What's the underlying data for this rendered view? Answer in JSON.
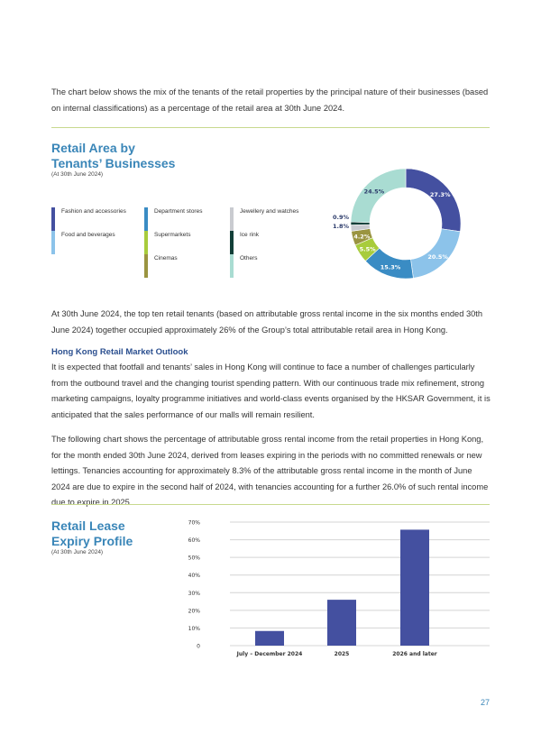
{
  "intro": "The chart below shows the mix of the tenants of the retail properties by the principal nature of their businesses (based on internal classifications) as a percentage of the retail area at 30th June 2024.",
  "donut": {
    "title_line1": "Retail Area by",
    "title_line2": "Tenants’ Businesses",
    "subtitle": "(At 30th June 2024)"
  },
  "para_top_ten": "At 30th June 2024, the top ten retail tenants (based on attributable gross rental income in the six months ended 30th June 2024) together occupied approximately 26% of the Group’s total attributable retail area in Hong Kong.",
  "outlook": {
    "heading": "Hong Kong Retail Market Outlook",
    "body": "It is expected that footfall and tenants’ sales in Hong Kong will continue to face a number of challenges particularly from the outbound travel and the changing tourist spending pattern. With our continuous trade mix refinement, strong marketing campaigns, loyalty programme initiatives and world-class events organised by the HKSAR Government, it is anticipated that the sales performance of our malls will remain resilient."
  },
  "para_expiry": "The following chart shows the percentage of attributable gross rental income from the retail properties in Hong Kong, for the month ended 30th June 2024, derived from leases expiring in the periods with no committed renewals or new lettings. Tenancies accounting for approximately 8.3% of the attributable gross rental income in the month of June 2024 are due to expire in the second half of 2024, with tenancies accounting for a further 26.0% of such rental income due to expire in 2025.",
  "bar": {
    "title_line1": "Retail Lease",
    "title_line2": "Expiry Profile",
    "subtitle": "(At 30th June 2024)"
  },
  "page_number": "27",
  "chart_data": [
    {
      "type": "pie",
      "donut": true,
      "start": "top",
      "direction": "clockwise",
      "slices": [
        {
          "name": "Fashion and accessories",
          "value": 27.3,
          "label": "27.3%",
          "color": "#4450a0"
        },
        {
          "name": "Food and beverages",
          "value": 20.5,
          "label": "20.5%",
          "color": "#8cc3ea"
        },
        {
          "name": "Department stores",
          "value": 15.3,
          "label": "15.3%",
          "color": "#3a8cc4"
        },
        {
          "name": "Supermarkets",
          "value": 5.5,
          "label": "5.5%",
          "color": "#a8cc3c"
        },
        {
          "name": "Cinemas",
          "value": 4.2,
          "label": "4.2%",
          "color": "#9a9440"
        },
        {
          "name": "Jewellery and watches",
          "value": 1.8,
          "label": "1.8%",
          "color": "#c9cbd0"
        },
        {
          "name": "Ice rink",
          "value": 0.9,
          "label": "0.9%",
          "color": "#123f38"
        },
        {
          "name": "Others",
          "value": 24.5,
          "label": "24.5%",
          "color": "#a9dcd2"
        }
      ],
      "legend_order": [
        "Fashion and accessories",
        "Food and beverages",
        "Department stores",
        "Supermarkets",
        "Cinemas",
        "Jewellery and watches",
        "Ice rink",
        "Others"
      ],
      "legend_placement": "left"
    },
    {
      "type": "bar",
      "categories": [
        "July – December 2024",
        "2025",
        "2026 and later"
      ],
      "values": [
        8.3,
        26.0,
        65.7
      ],
      "ylim": [
        0,
        70
      ],
      "yticks": [
        "0",
        "10%",
        "20%",
        "30%",
        "40%",
        "50%",
        "60%",
        "70%"
      ],
      "ytick_values": [
        0,
        10,
        20,
        30,
        40,
        50,
        60,
        70
      ],
      "grid": true,
      "color": "#4450a0"
    }
  ]
}
